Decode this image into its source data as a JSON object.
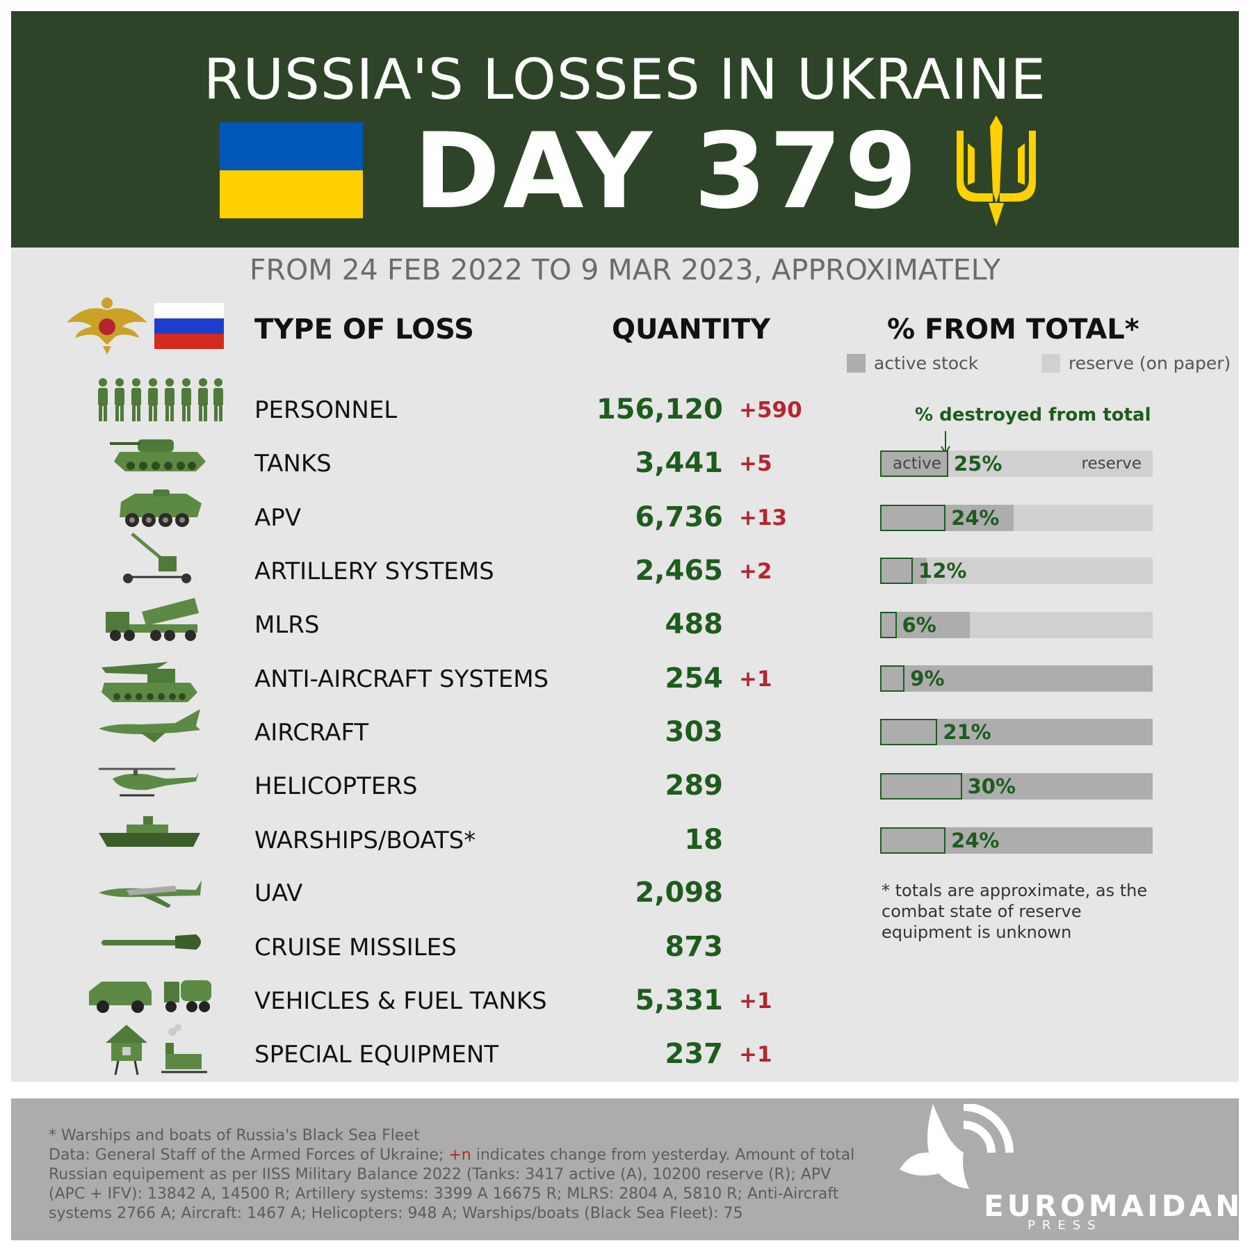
{
  "header": {
    "title": "RUSSIA'S LOSSES IN UKRAINE",
    "day": "DAY 379",
    "subtitle": "FROM 24 FEB 2022 TO 9 MAR 2023, APPROXIMATELY"
  },
  "columns": {
    "type": "TYPE OF LOSS",
    "quantity": "QUANTITY",
    "percent": "% FROM TOTAL*"
  },
  "legend": {
    "active": "active stock",
    "reserve": "reserve (on paper)",
    "active_color": "#adadad",
    "reserve_color": "#d0d0d0"
  },
  "destroyed_note": "% destroyed from total",
  "bar_labels": {
    "active": "active",
    "reserve": "reserve"
  },
  "note": "* totals are approximate, as the combat state of reserve equipment is unknown",
  "colors": {
    "header_bg": "#2e4428",
    "qty": "#1d5c1d",
    "change": "#b5252f",
    "panel_bg": "#e6e6e6",
    "footer_bg": "#acacac"
  },
  "chart_data": {
    "type": "table",
    "rows": [
      {
        "label": "PERSONNEL",
        "quantity": "156,120",
        "change": "+590",
        "icon": "soldiers-icon"
      },
      {
        "label": "TANKS",
        "quantity": "3,441",
        "change": "+5",
        "percent": "25%",
        "destroyed_frac": 0.25,
        "active_frac": 0.25,
        "icon": "tank-icon"
      },
      {
        "label": "APV",
        "quantity": "6,736",
        "change": "+13",
        "percent": "24%",
        "destroyed_frac": 0.24,
        "active_frac": 0.49,
        "icon": "apc-icon"
      },
      {
        "label": "ARTILLERY SYSTEMS",
        "quantity": "2,465",
        "change": "+2",
        "percent": "12%",
        "destroyed_frac": 0.12,
        "active_frac": 0.17,
        "icon": "artillery-icon"
      },
      {
        "label": "MLRS",
        "quantity": "488",
        "change": "",
        "percent": "6%",
        "destroyed_frac": 0.06,
        "active_frac": 0.33,
        "icon": "mlrs-icon"
      },
      {
        "label": "ANTI-AIRCRAFT SYSTEMS",
        "quantity": "254",
        "change": "+1",
        "percent": "9%",
        "destroyed_frac": 0.09,
        "active_frac": 1.0,
        "icon": "anti-aircraft-icon"
      },
      {
        "label": "AIRCRAFT",
        "quantity": "303",
        "change": "",
        "percent": "21%",
        "destroyed_frac": 0.21,
        "active_frac": 1.0,
        "icon": "aircraft-icon"
      },
      {
        "label": "HELICOPTERS",
        "quantity": "289",
        "change": "",
        "percent": "30%",
        "destroyed_frac": 0.3,
        "active_frac": 1.0,
        "icon": "helicopter-icon"
      },
      {
        "label": "WARSHIPS/BOATS*",
        "quantity": "18",
        "change": "",
        "percent": "24%",
        "destroyed_frac": 0.24,
        "active_frac": 1.0,
        "icon": "warship-icon"
      },
      {
        "label": "UAV",
        "quantity": "2,098",
        "change": "",
        "icon": "uav-icon"
      },
      {
        "label": "CRUISE MISSILES",
        "quantity": "873",
        "change": "",
        "icon": "missile-icon"
      },
      {
        "label": "VEHICLES & FUEL TANKS",
        "quantity": "5,331",
        "change": "+1",
        "icon": "vehicles-icon"
      },
      {
        "label": "SPECIAL EQUIPMENT",
        "quantity": "237",
        "change": "+1",
        "icon": "special-equipment-icon"
      }
    ]
  },
  "footer": {
    "line1": "* Warships and boats of Russia's Black Sea Fleet",
    "line2a": "Data: General Staff of the Armed Forces of Ukraine; ",
    "line2red": "+n",
    "line2b": " indicates change from yesterday. Amount of total Russian equipement as per IISS Military Balance 2022 (Tanks: 3417 active (A), 10200 reserve (R); APV (APC + IFV): 13842 A, 14500 R; Artillery systems: 3399 A 16675 R; MLRS: 2804 A, 5810 R; Anti-Aircraft systems 2766 A; Aircraft: 1467 A; Helicopters: 948 A; Warships/boats (Black Sea Fleet): 75",
    "logo_word": "EUROMAIDAN",
    "logo_press": "PRESS"
  }
}
